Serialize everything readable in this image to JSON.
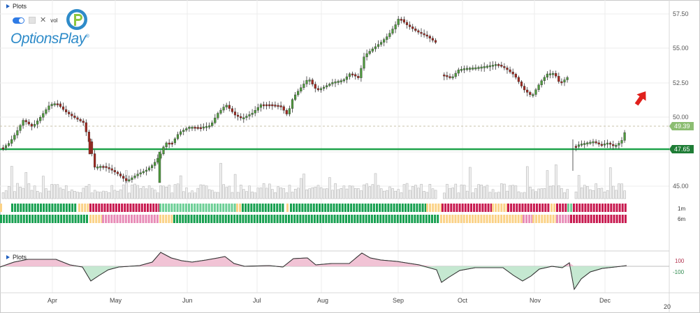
{
  "header": {
    "plots_label": "Plots",
    "vol_label": "vol"
  },
  "logo": {
    "text": "OptionsPlay",
    "mark": "®",
    "icon": "options-play-logo-icon"
  },
  "indicator": {
    "plots_label": "Plots",
    "upper_label": "100",
    "lower_label": "-100"
  },
  "price_axis": {
    "ticks": [
      "57.50",
      "55.00",
      "52.50",
      "50.00",
      "45.00"
    ]
  },
  "price_tags": {
    "last": "49.39",
    "support": "47.65"
  },
  "band_labels": {
    "one_month": "1m",
    "six_month": "6m"
  },
  "time_axis": {
    "labels": [
      "Apr",
      "May",
      "Jun",
      "Jul",
      "Aug",
      "Sep",
      "Oct",
      "Nov",
      "Dec",
      "20"
    ]
  },
  "colors": {
    "up": "#4e9a3c",
    "down": "#a3281f",
    "support": "#1ea34a",
    "band_green": "#17a050",
    "band_red": "#c8194f",
    "band_yellow": "#fbd287",
    "band_pink": "#e88bb7",
    "band_lightgreen": "#6ccf96",
    "arrow": "#e0201c"
  }
}
